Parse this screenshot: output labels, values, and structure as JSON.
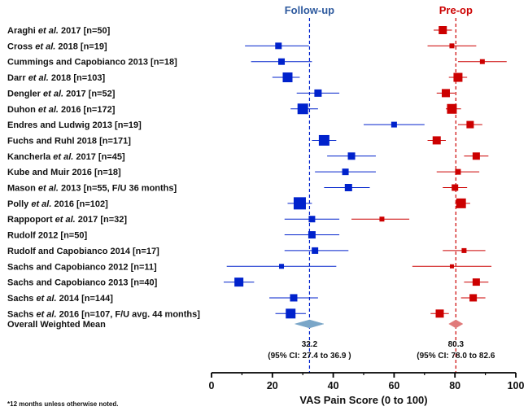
{
  "chart_data": {
    "type": "forest",
    "xlabel": "VAS Pain Score (0 to 100)",
    "xlim": [
      0,
      100
    ],
    "xticks": [
      0,
      20,
      40,
      60,
      80,
      100
    ],
    "footnote": "*12 months unless otherwise noted.",
    "series": [
      {
        "name": "Follow-up",
        "color": "#0022cc",
        "label_color": "#2e5a9e",
        "mean": 32.2
      },
      {
        "name": "Pre-op",
        "color": "#cc0000",
        "label_color": "#cc0000",
        "mean": 80.3
      }
    ],
    "studies": [
      {
        "label_pre": "Araghi ",
        "label_ital": "et al.",
        "label_post": " 2017 [n=50]",
        "followup": null,
        "preop": {
          "mean": 76,
          "lo": 73,
          "hi": 79,
          "size": 10
        }
      },
      {
        "label_pre": "Cross ",
        "label_ital": "et al.",
        "label_post": " 2018 [n=19]",
        "followup": {
          "mean": 22,
          "lo": 11,
          "hi": 32,
          "size": 8
        },
        "preop": {
          "mean": 79,
          "lo": 71,
          "hi": 87,
          "size": 6
        }
      },
      {
        "label_pre": "Cummings and Capobianco 2013 [n=18]",
        "label_ital": "",
        "label_post": "",
        "followup": {
          "mean": 23,
          "lo": 13,
          "hi": 33,
          "size": 8
        },
        "preop": {
          "mean": 89,
          "lo": 81,
          "hi": 97,
          "size": 6
        }
      },
      {
        "label_pre": "Darr ",
        "label_ital": "et al.",
        "label_post": " 2018 [n=103]",
        "followup": {
          "mean": 25,
          "lo": 20,
          "hi": 29,
          "size": 12
        },
        "preop": {
          "mean": 81,
          "lo": 78,
          "hi": 84,
          "size": 11
        }
      },
      {
        "label_pre": "Dengler ",
        "label_ital": "et al.",
        "label_post": " 2017 [n=52]",
        "followup": {
          "mean": 35,
          "lo": 28,
          "hi": 42,
          "size": 9
        },
        "preop": {
          "mean": 77,
          "lo": 74,
          "hi": 80,
          "size": 10
        }
      },
      {
        "label_pre": "Duhon ",
        "label_ital": "et al.",
        "label_post": " 2016 [n=172]",
        "followup": {
          "mean": 30,
          "lo": 26,
          "hi": 35,
          "size": 13
        },
        "preop": {
          "mean": 79,
          "lo": 77,
          "hi": 82,
          "size": 12
        }
      },
      {
        "label_pre": "Endres and Ludwig 2013 [n=19]",
        "label_ital": "",
        "label_post": "",
        "followup": {
          "mean": 60,
          "lo": 50,
          "hi": 70,
          "size": 7
        },
        "preop": {
          "mean": 85,
          "lo": 81,
          "hi": 89,
          "size": 9
        }
      },
      {
        "label_pre": "Fuchs and Ruhl 2018 [n=171]",
        "label_ital": "",
        "label_post": "",
        "followup": {
          "mean": 37,
          "lo": 33,
          "hi": 41,
          "size": 13
        },
        "preop": {
          "mean": 74,
          "lo": 71,
          "hi": 77,
          "size": 10
        }
      },
      {
        "label_pre": "Kancherla ",
        "label_ital": "et al.",
        "label_post": " 2017 [n=45]",
        "followup": {
          "mean": 46,
          "lo": 38,
          "hi": 54,
          "size": 9
        },
        "preop": {
          "mean": 87,
          "lo": 83,
          "hi": 91,
          "size": 9
        }
      },
      {
        "label_pre": "Kube and Muir 2016 [n=18]",
        "label_ital": "",
        "label_post": "",
        "followup": {
          "mean": 44,
          "lo": 34,
          "hi": 54,
          "size": 8
        },
        "preop": {
          "mean": 81,
          "lo": 74,
          "hi": 88,
          "size": 7
        }
      },
      {
        "label_pre": "Mason ",
        "label_ital": "et al.",
        "label_post": " 2013 [n=55, F/U 36 months]",
        "followup": {
          "mean": 45,
          "lo": 37,
          "hi": 52,
          "size": 9
        },
        "preop": {
          "mean": 80,
          "lo": 76,
          "hi": 84,
          "size": 8
        }
      },
      {
        "label_pre": "Polly ",
        "label_ital": "et al.",
        "label_post": " 2016 [n=102]",
        "followup": {
          "mean": 29,
          "lo": 25,
          "hi": 33,
          "size": 15
        },
        "preop": {
          "mean": 82,
          "lo": 80,
          "hi": 85,
          "size": 12
        }
      },
      {
        "label_pre": "Rappoport ",
        "label_ital": "et al.",
        "label_post": " 2017 [n=32]",
        "followup": {
          "mean": 33,
          "lo": 24,
          "hi": 42,
          "size": 8
        },
        "preop": {
          "mean": 56,
          "lo": 46,
          "hi": 65,
          "size": 6
        }
      },
      {
        "label_pre": "Rudolf 2012 [n=50]",
        "label_ital": "",
        "label_post": "",
        "followup": {
          "mean": 33,
          "lo": 24,
          "hi": 42,
          "size": 9
        },
        "preop": null
      },
      {
        "label_pre": "Rudolf and Capobianco 2014 [n=17]",
        "label_ital": "",
        "label_post": "",
        "followup": {
          "mean": 34,
          "lo": 24,
          "hi": 45,
          "size": 8
        },
        "preop": {
          "mean": 83,
          "lo": 76,
          "hi": 90,
          "size": 6
        }
      },
      {
        "label_pre": "Sachs and Capobianco 2012 [n=11]",
        "label_ital": "",
        "label_post": "",
        "followup": {
          "mean": 23,
          "lo": 5,
          "hi": 41,
          "size": 6
        },
        "preop": {
          "mean": 79,
          "lo": 66,
          "hi": 92,
          "size": 5
        }
      },
      {
        "label_pre": "Sachs and Capobianco 2013 [n=40]",
        "label_ital": "",
        "label_post": "",
        "followup": {
          "mean": 9,
          "lo": 4,
          "hi": 14,
          "size": 11
        },
        "preop": {
          "mean": 87,
          "lo": 83,
          "hi": 91,
          "size": 9
        }
      },
      {
        "label_pre": "Sachs ",
        "label_ital": "et al.",
        "label_post": " 2014 [n=144]",
        "followup": {
          "mean": 27,
          "lo": 19,
          "hi": 35,
          "size": 9
        },
        "preop": {
          "mean": 86,
          "lo": 82,
          "hi": 90,
          "size": 9
        }
      },
      {
        "label_pre": "Sachs ",
        "label_ital": "et al.",
        "label_post": " 2016 [n=107, F/U avg. 44 months]",
        "followup": {
          "mean": 26,
          "lo": 21,
          "hi": 31,
          "size": 12
        },
        "preop": {
          "mean": 75,
          "lo": 72,
          "hi": 78,
          "size": 10
        }
      }
    ],
    "overall": {
      "label": "Overall Weighted Mean",
      "followup": {
        "mean": 32.2,
        "lo": 27.4,
        "hi": 36.9,
        "text": "32.2",
        "ci_text": "(95% CI: 27.4 to 36.9 )",
        "color": "#7aa6c8"
      },
      "preop": {
        "mean": 80.3,
        "lo": 78.0,
        "hi": 82.6,
        "text": "80.3",
        "ci_text": "(95% CI: 78.0 to 82.6",
        "color": "#e07a7a"
      }
    }
  }
}
